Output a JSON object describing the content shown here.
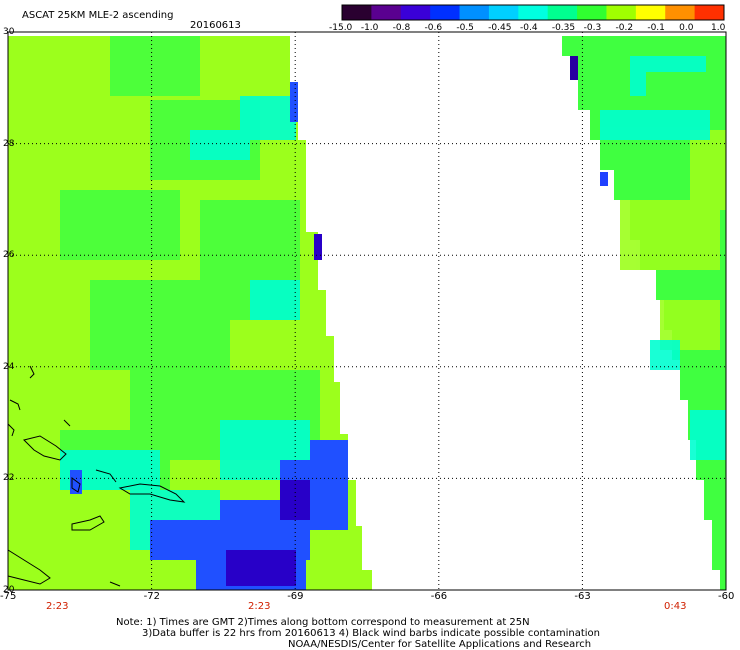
{
  "header": {
    "title": "ASCAT 25KM MLE-2 ascending",
    "date": "20160613"
  },
  "colorbar": {
    "tick_labels": [
      "-15.0",
      "-1.0",
      "-0.8",
      "-0.6",
      "-0.5",
      "-0.45",
      "-0.4",
      "-0.35",
      "-0.3",
      "-0.2",
      "-0.1",
      "0.0",
      "1.0"
    ],
    "colors": [
      "#2a0030",
      "#5a0090",
      "#3a00d8",
      "#0030ff",
      "#0090ff",
      "#00d0ff",
      "#00ffe0",
      "#00ff90",
      "#30ff30",
      "#a0ff00",
      "#ffff00",
      "#ff9000",
      "#ff3000"
    ]
  },
  "axes": {
    "lon_labels": [
      "-75",
      "-72",
      "-69",
      "-66",
      "-63",
      "-60"
    ],
    "lat_labels": [
      "30",
      "28",
      "26",
      "24",
      "22",
      "20"
    ]
  },
  "times": [
    "2:23",
    "2:23",
    "0:43"
  ],
  "notes": {
    "line1": "Note: 1) Times are GMT 2)Times along bottom correspond to measurement at 25N",
    "line2": "3)Data buffer is 22 hrs from 20160613 4) Black wind barbs indicate possible contamination",
    "line3": "NOAA/NESDIS/Center for Satellite Applications and Research"
  },
  "style": {
    "time_color": "#d02000",
    "grid_color": "#000000",
    "swath_base": "#9cff1c",
    "swath_mid": "#40ff40",
    "swath_cyan": "#00ffd0",
    "swath_blue": "#2040ff",
    "swath_deep": "#2000c0"
  }
}
